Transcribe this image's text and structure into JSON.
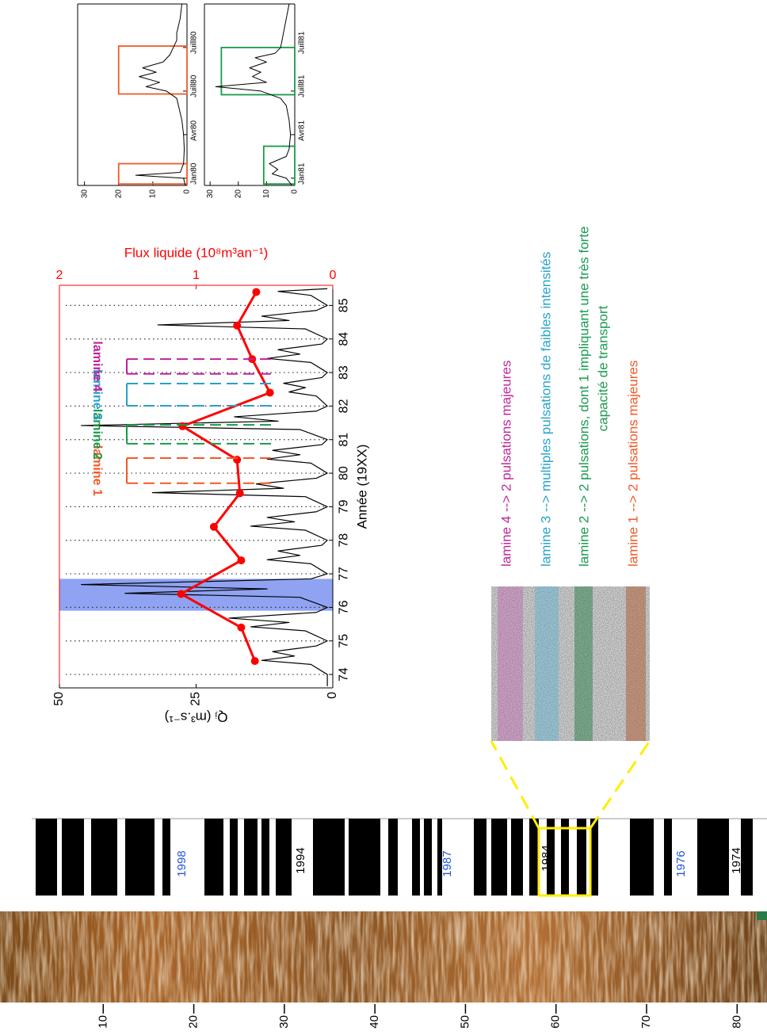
{
  "chart_data": [
    {
      "type": "line",
      "xlabel": "Année (19XX)",
      "ylabel": "Qⱼ (m³.s⁻¹)",
      "y2label": "Flux liquide (10⁸m³an⁻¹)",
      "xlim": [
        73.6,
        85.6
      ],
      "xticks": [
        74,
        75,
        76,
        77,
        78,
        79,
        80,
        81,
        82,
        83,
        84,
        85
      ],
      "ylim": [
        0,
        50
      ],
      "yticks": [
        0,
        25,
        50
      ],
      "y2lim": [
        0,
        2
      ],
      "y2ticks": [
        0,
        1,
        2
      ],
      "grid": true,
      "highlight_span": {
        "x": [
          75.9,
          76.85
        ],
        "color": "#7b93f0"
      },
      "series": [
        {
          "color": "#000000",
          "x": [
            73.65,
            74,
            74.3,
            74.42,
            74.55,
            74.68,
            74.85,
            75,
            75.3,
            75.42,
            75.55,
            75.68,
            75.85,
            76,
            76.3,
            76.42,
            76.55,
            76.68,
            76.85,
            77,
            77.3,
            77.42,
            77.55,
            77.68,
            77.85,
            78,
            78.3,
            78.42,
            78.55,
            78.68,
            78.85,
            79,
            79.3,
            79.42,
            79.55,
            79.68,
            79.85,
            80,
            80.3,
            80.42,
            80.55,
            80.68,
            80.85,
            81,
            81.3,
            81.42,
            81.55,
            81.68,
            81.85,
            82,
            82.3,
            82.42,
            82.55,
            82.68,
            82.85,
            83,
            83.3,
            83.42,
            83.55,
            83.68,
            83.85,
            84,
            84.3,
            84.42,
            84.55,
            84.68,
            84.85,
            85,
            85.3,
            85.42,
            85.5
          ],
          "values": [
            1,
            1,
            4,
            13,
            7,
            11,
            3,
            1,
            5,
            15,
            8,
            19,
            3,
            1,
            6,
            38,
            12,
            46,
            4,
            1,
            4,
            12,
            6,
            10,
            2,
            1,
            5,
            15,
            7,
            12,
            3,
            1,
            5,
            33,
            9,
            14,
            3,
            1,
            4,
            12,
            6,
            11,
            2,
            1,
            6,
            46,
            10,
            18,
            3,
            1,
            3,
            8,
            5,
            9,
            2,
            1,
            4,
            12,
            6,
            10,
            2,
            1,
            5,
            32,
            8,
            13,
            3,
            1,
            4,
            10,
            1
          ]
        },
        {
          "color": "#ff0000",
          "axis": "y2",
          "marker": true,
          "x": [
            74.4,
            75.4,
            76.4,
            77.4,
            78.4,
            79.4,
            80.4,
            81.4,
            82.4,
            83.4,
            84.4,
            85.4
          ],
          "values": [
            0.57,
            0.67,
            1.11,
            0.67,
            0.87,
            0.68,
            0.7,
            1.1,
            0.46,
            0.59,
            0.7,
            0.56
          ]
        }
      ],
      "annotations": [
        {
          "text": "lamine 1",
          "x": [
            79.7,
            80.45
          ],
          "color": "#f05a28"
        },
        {
          "text": "lamine 2",
          "x": [
            80.88,
            81.44
          ],
          "color": "#1a9a4a"
        },
        {
          "text": "lamine 3",
          "x": [
            82.01,
            82.67
          ],
          "color": "#2a9fc8"
        },
        {
          "text": "lamine 4",
          "x": [
            82.96,
            83.4
          ],
          "color": "#c020a0"
        }
      ]
    },
    {
      "type": "line",
      "xlim": [
        -0.5,
        12
      ],
      "xticks": [
        {
          "value": 0,
          "label": "Jan80"
        },
        {
          "value": 3,
          "label": "Avr80"
        },
        {
          "value": 6,
          "label": "Juill80"
        },
        {
          "value": 9,
          "label": "Juill80"
        }
      ],
      "ylim": [
        0,
        32
      ],
      "yticks": [
        0,
        10,
        20,
        30
      ],
      "series": [
        {
          "color": "#000000",
          "x": [
            -0.5,
            0,
            0.2,
            0.4,
            1,
            2,
            3,
            4,
            4.5,
            5,
            5.5,
            6,
            6.3,
            6.6,
            7,
            7.3,
            7.6,
            8,
            8.5,
            9,
            9.5,
            10,
            11,
            12
          ],
          "values": [
            0.5,
            1,
            15,
            2,
            1,
            0.8,
            1,
            1.5,
            2,
            2.5,
            3,
            6,
            12,
            8,
            14,
            9,
            13,
            7,
            5,
            4,
            3,
            3,
            2,
            1.5
          ]
        }
      ],
      "highlights": [
        {
          "x": [
            -0.4,
            1
          ],
          "y": [
            0,
            20
          ],
          "color": "#f05a28"
        },
        {
          "x": [
            5.8,
            9.1
          ],
          "y": [
            0,
            20
          ],
          "color": "#f05a28"
        }
      ]
    },
    {
      "type": "line",
      "xlim": [
        -0.5,
        12
      ],
      "xticks": [
        {
          "value": 0,
          "label": "Jan81"
        },
        {
          "value": 3,
          "label": "Avr81"
        },
        {
          "value": 6,
          "label": "Juill81"
        },
        {
          "value": 9,
          "label": "Juill81"
        }
      ],
      "ylim": [
        0,
        32
      ],
      "yticks": [
        0,
        10,
        20,
        30
      ],
      "series": [
        {
          "color": "#000000",
          "x": [
            -0.5,
            0,
            0.3,
            0.6,
            1,
            1.5,
            2,
            3,
            4,
            5,
            5.5,
            6,
            6.3,
            6.6,
            7,
            7.3,
            7.6,
            8,
            8.3,
            8.6,
            9,
            10,
            11,
            12
          ],
          "values": [
            1,
            3,
            8,
            6,
            9,
            3,
            2,
            1.5,
            2,
            3,
            5,
            12,
            28,
            10,
            15,
            12,
            16,
            10,
            14,
            7,
            5,
            4,
            3,
            2
          ]
        }
      ],
      "highlights": [
        {
          "x": [
            -0.4,
            2.2
          ],
          "y": [
            0,
            11
          ],
          "color": "#1a9a4a"
        },
        {
          "x": [
            5.75,
            9
          ],
          "y": [
            0,
            26
          ],
          "color": "#1a9a4a"
        }
      ]
    }
  ],
  "core": {
    "ylim": [
      -1.4,
      83.3
    ],
    "yticks": [
      10,
      20,
      30,
      40,
      50,
      60,
      70,
      80
    ]
  },
  "barcode": {
    "labels": [
      {
        "text": "1998",
        "color": "#2255dd"
      },
      {
        "text": "1994",
        "color": "#000000"
      },
      {
        "text": "1987",
        "color": "#2255dd"
      },
      {
        "text": "1984",
        "color": "#000000"
      },
      {
        "text": "1976",
        "color": "#2255dd"
      },
      {
        "text": "1974",
        "color": "#000000"
      }
    ]
  },
  "thin_section": {
    "descriptions": [
      {
        "text": "lamine 4 --> 2 pulsations majeures",
        "color": "#c0289a"
      },
      {
        "text": "lamine 3 --> multiples pulsations de faibles intensités",
        "color": "#29a3c8"
      },
      {
        "text": "lamine 2 --> 2 pulsations, dont 1 impliquant une très forte",
        "color": "#1a9a50"
      },
      {
        "text": "capacité de transport",
        "color": "#1a9a50"
      },
      {
        "text": "lamine 1 --> 2 pulsations majeures",
        "color": "#f05a28"
      }
    ]
  }
}
